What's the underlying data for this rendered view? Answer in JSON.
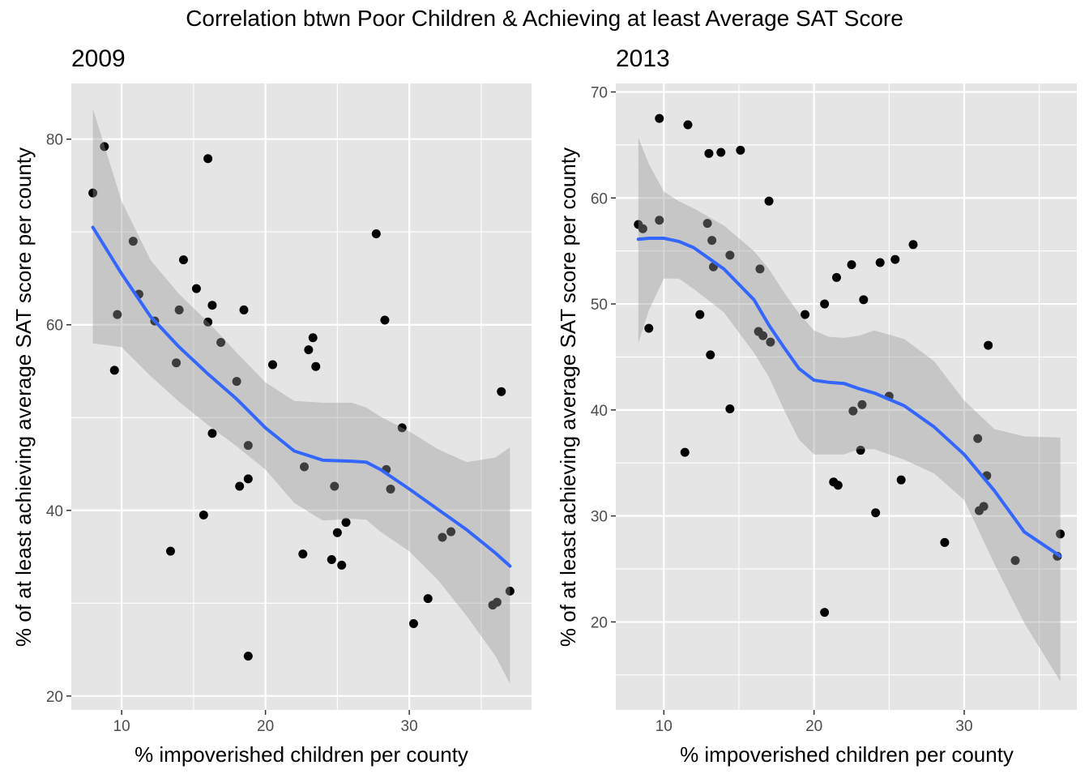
{
  "figure": {
    "title": "Correlation btwn Poor Children & Achieving at least Average SAT Score"
  },
  "colors": {
    "panel_bg": "#e5e5e5",
    "grid": "#ffffff",
    "point": "#000000",
    "smooth_line": "#3366ff",
    "ribbon": "#999999",
    "tick_text": "#4d4d4d"
  },
  "chart_data": [
    {
      "type": "scatter",
      "title": "2009",
      "xlabel": "% impoverished children per county",
      "ylabel": "% of at least achieving average SAT score per county",
      "xlim": [
        6.5,
        38.5
      ],
      "ylim": [
        18.5,
        86
      ],
      "x_ticks": [
        10,
        20,
        30
      ],
      "y_ticks": [
        20,
        40,
        60,
        80
      ],
      "grid": true,
      "points": [
        {
          "x": 8.0,
          "y": 74.2
        },
        {
          "x": 8.8,
          "y": 79.2
        },
        {
          "x": 9.5,
          "y": 55.1
        },
        {
          "x": 9.7,
          "y": 61.1
        },
        {
          "x": 10.8,
          "y": 69.0
        },
        {
          "x": 11.2,
          "y": 63.3
        },
        {
          "x": 12.3,
          "y": 60.4
        },
        {
          "x": 13.4,
          "y": 35.6
        },
        {
          "x": 13.8,
          "y": 55.9
        },
        {
          "x": 14.0,
          "y": 61.6
        },
        {
          "x": 14.3,
          "y": 67.0
        },
        {
          "x": 15.2,
          "y": 63.9
        },
        {
          "x": 15.7,
          "y": 39.5
        },
        {
          "x": 16.0,
          "y": 77.9
        },
        {
          "x": 16.0,
          "y": 60.3
        },
        {
          "x": 16.3,
          "y": 62.1
        },
        {
          "x": 16.3,
          "y": 48.3
        },
        {
          "x": 16.9,
          "y": 58.1
        },
        {
          "x": 18.0,
          "y": 53.9
        },
        {
          "x": 18.2,
          "y": 42.6
        },
        {
          "x": 18.5,
          "y": 61.6
        },
        {
          "x": 18.8,
          "y": 47.0
        },
        {
          "x": 18.8,
          "y": 43.4
        },
        {
          "x": 18.8,
          "y": 24.3
        },
        {
          "x": 20.5,
          "y": 55.7
        },
        {
          "x": 22.6,
          "y": 35.3
        },
        {
          "x": 22.7,
          "y": 44.7
        },
        {
          "x": 23.0,
          "y": 57.3
        },
        {
          "x": 23.3,
          "y": 58.6
        },
        {
          "x": 23.5,
          "y": 55.5
        },
        {
          "x": 24.6,
          "y": 34.7
        },
        {
          "x": 24.8,
          "y": 42.6
        },
        {
          "x": 25.0,
          "y": 37.6
        },
        {
          "x": 25.3,
          "y": 34.1
        },
        {
          "x": 25.6,
          "y": 38.7
        },
        {
          "x": 27.7,
          "y": 69.8
        },
        {
          "x": 28.3,
          "y": 60.5
        },
        {
          "x": 28.4,
          "y": 44.4
        },
        {
          "x": 28.7,
          "y": 42.3
        },
        {
          "x": 29.5,
          "y": 48.9
        },
        {
          "x": 30.3,
          "y": 27.8
        },
        {
          "x": 31.3,
          "y": 30.5
        },
        {
          "x": 32.3,
          "y": 37.1
        },
        {
          "x": 32.9,
          "y": 37.7
        },
        {
          "x": 35.8,
          "y": 29.8
        },
        {
          "x": 36.1,
          "y": 30.1
        },
        {
          "x": 36.4,
          "y": 52.8
        },
        {
          "x": 37.0,
          "y": 31.3
        }
      ],
      "smooth": {
        "x": [
          8.0,
          10.0,
          12.0,
          14.0,
          16.0,
          18.0,
          20.0,
          22.0,
          24.0,
          26.0,
          27.0,
          28.0,
          30.0,
          32.0,
          34.0,
          36.0,
          37.0
        ],
        "y": [
          70.5,
          65.5,
          60.9,
          57.6,
          54.7,
          52.0,
          48.9,
          46.4,
          45.4,
          45.3,
          45.2,
          44.4,
          42.3,
          40.1,
          37.9,
          35.4,
          34.0
        ],
        "ymin": [
          58.0,
          57.6,
          54.5,
          51.7,
          49.2,
          46.9,
          44.4,
          40.8,
          38.9,
          39.1,
          39.0,
          37.7,
          35.6,
          32.5,
          28.6,
          24.3,
          21.3
        ],
        "ymax": [
          83.3,
          73.3,
          67.0,
          63.3,
          60.3,
          57.0,
          53.8,
          51.8,
          51.6,
          51.6,
          51.1,
          50.1,
          48.5,
          46.6,
          45.2,
          45.7,
          46.8
        ]
      }
    },
    {
      "type": "scatter",
      "title": "2013",
      "xlabel": "% impoverished children per county",
      "ylabel": "% of at least achieving average SAT score per county",
      "xlim": [
        6.8,
        37.5
      ],
      "ylim": [
        11.7,
        70.8
      ],
      "x_ticks": [
        10,
        20,
        30
      ],
      "y_ticks": [
        20,
        30,
        40,
        50,
        60,
        70
      ],
      "grid": true,
      "points": [
        {
          "x": 8.3,
          "y": 57.5
        },
        {
          "x": 8.6,
          "y": 57.1
        },
        {
          "x": 9.0,
          "y": 47.7
        },
        {
          "x": 9.7,
          "y": 67.5
        },
        {
          "x": 9.7,
          "y": 57.9
        },
        {
          "x": 11.4,
          "y": 36.0
        },
        {
          "x": 11.6,
          "y": 66.9
        },
        {
          "x": 12.4,
          "y": 49.0
        },
        {
          "x": 12.9,
          "y": 57.6
        },
        {
          "x": 13.0,
          "y": 64.2
        },
        {
          "x": 13.1,
          "y": 45.2
        },
        {
          "x": 13.2,
          "y": 56.0
        },
        {
          "x": 13.3,
          "y": 53.5
        },
        {
          "x": 13.8,
          "y": 64.3
        },
        {
          "x": 14.4,
          "y": 54.6
        },
        {
          "x": 14.4,
          "y": 40.1
        },
        {
          "x": 15.1,
          "y": 64.5
        },
        {
          "x": 16.3,
          "y": 47.4
        },
        {
          "x": 16.4,
          "y": 53.3
        },
        {
          "x": 16.6,
          "y": 47.0
        },
        {
          "x": 17.0,
          "y": 59.7
        },
        {
          "x": 17.1,
          "y": 46.4
        },
        {
          "x": 19.4,
          "y": 49.0
        },
        {
          "x": 20.7,
          "y": 50.0
        },
        {
          "x": 20.7,
          "y": 20.9
        },
        {
          "x": 21.3,
          "y": 33.2
        },
        {
          "x": 21.5,
          "y": 52.5
        },
        {
          "x": 21.6,
          "y": 32.9
        },
        {
          "x": 22.5,
          "y": 53.7
        },
        {
          "x": 22.6,
          "y": 39.9
        },
        {
          "x": 23.1,
          "y": 36.2
        },
        {
          "x": 23.2,
          "y": 40.5
        },
        {
          "x": 23.3,
          "y": 50.4
        },
        {
          "x": 24.1,
          "y": 30.3
        },
        {
          "x": 24.4,
          "y": 53.9
        },
        {
          "x": 25.0,
          "y": 41.3
        },
        {
          "x": 25.4,
          "y": 54.2
        },
        {
          "x": 25.8,
          "y": 33.4
        },
        {
          "x": 26.6,
          "y": 55.6
        },
        {
          "x": 28.7,
          "y": 27.5
        },
        {
          "x": 30.9,
          "y": 37.3
        },
        {
          "x": 31.0,
          "y": 30.5
        },
        {
          "x": 31.3,
          "y": 30.9
        },
        {
          "x": 31.5,
          "y": 33.8
        },
        {
          "x": 31.6,
          "y": 46.1
        },
        {
          "x": 33.4,
          "y": 25.8
        },
        {
          "x": 36.2,
          "y": 26.2
        },
        {
          "x": 36.4,
          "y": 28.3
        }
      ],
      "smooth": {
        "x": [
          8.3,
          9.0,
          10.0,
          11.0,
          12.0,
          14.0,
          16.0,
          17.0,
          18.0,
          19.0,
          20.0,
          21.0,
          22.0,
          23.0,
          24.0,
          26.0,
          28.0,
          30.0,
          32.0,
          34.0,
          36.4
        ],
        "y": [
          56.1,
          56.2,
          56.2,
          55.9,
          55.3,
          53.3,
          50.4,
          48.0,
          45.9,
          43.9,
          42.8,
          42.6,
          42.5,
          42.0,
          41.6,
          40.4,
          38.4,
          35.8,
          32.4,
          28.5,
          26.2
        ],
        "ymin": [
          46.3,
          49.4,
          52.4,
          52.4,
          51.4,
          49.2,
          45.4,
          43.1,
          40.0,
          37.2,
          35.8,
          35.8,
          35.8,
          36.3,
          36.3,
          35.3,
          34.0,
          31.5,
          25.5,
          19.9,
          14.4
        ],
        "ymax": [
          65.7,
          63.2,
          60.6,
          59.7,
          59.0,
          57.4,
          55.0,
          53.3,
          51.1,
          49.1,
          47.5,
          46.9,
          46.8,
          47.0,
          47.5,
          46.7,
          44.6,
          40.9,
          38.2,
          37.5,
          37.4
        ]
      }
    }
  ]
}
